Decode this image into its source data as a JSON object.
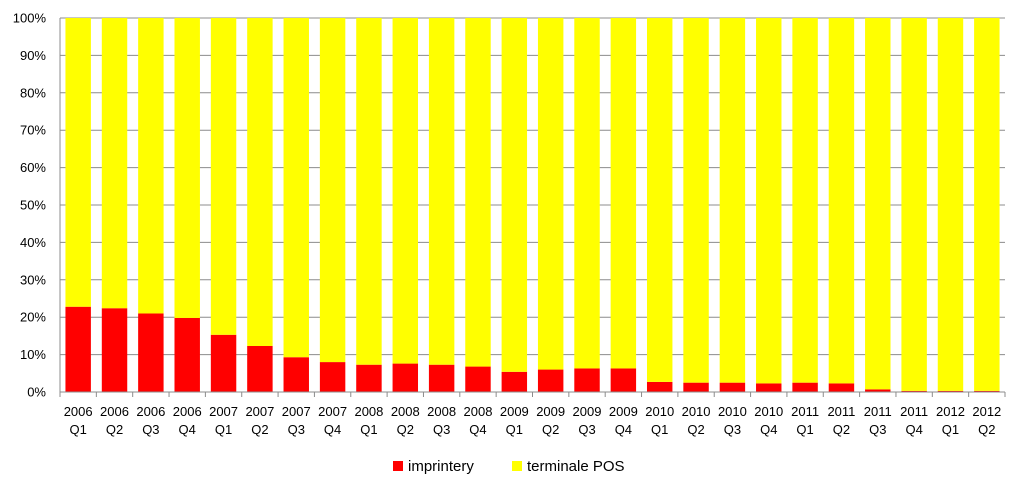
{
  "chart_data": {
    "type": "bar",
    "stacked": true,
    "categories": [
      [
        "2006",
        "Q1"
      ],
      [
        "2006",
        "Q2"
      ],
      [
        "2006",
        "Q3"
      ],
      [
        "2006",
        "Q4"
      ],
      [
        "2007",
        "Q1"
      ],
      [
        "2007",
        "Q2"
      ],
      [
        "2007",
        "Q3"
      ],
      [
        "2007",
        "Q4"
      ],
      [
        "2008",
        "Q1"
      ],
      [
        "2008",
        "Q2"
      ],
      [
        "2008",
        "Q3"
      ],
      [
        "2008",
        "Q4"
      ],
      [
        "2009",
        "Q1"
      ],
      [
        "2009",
        "Q2"
      ],
      [
        "2009",
        "Q3"
      ],
      [
        "2009",
        "Q4"
      ],
      [
        "2010",
        "Q1"
      ],
      [
        "2010",
        "Q2"
      ],
      [
        "2010",
        "Q3"
      ],
      [
        "2010",
        "Q4"
      ],
      [
        "2011",
        "Q1"
      ],
      [
        "2011",
        "Q2"
      ],
      [
        "2011",
        "Q3"
      ],
      [
        "2011",
        "Q4"
      ],
      [
        "2012",
        "Q1"
      ],
      [
        "2012",
        "Q2"
      ]
    ],
    "series": [
      {
        "name": "imprintery",
        "color": "#ff0000",
        "values": [
          22.8,
          22.4,
          21.0,
          19.8,
          15.3,
          12.3,
          9.3,
          8.0,
          7.3,
          7.6,
          7.3,
          6.8,
          5.4,
          6.0,
          6.3,
          6.3,
          2.7,
          2.5,
          2.5,
          2.3,
          2.5,
          2.3,
          0.7,
          0.3,
          0.3,
          0.3
        ]
      },
      {
        "name": "terminale POS",
        "color": "#ffff00",
        "values": [
          77.2,
          77.6,
          79.0,
          80.2,
          84.7,
          87.7,
          90.7,
          92.0,
          92.7,
          92.4,
          92.7,
          93.2,
          94.6,
          94.0,
          93.7,
          93.7,
          97.3,
          97.5,
          97.5,
          97.7,
          97.5,
          97.7,
          99.3,
          99.7,
          99.7,
          99.7
        ]
      }
    ],
    "ylim": [
      0,
      100
    ],
    "yticks": [
      "0%",
      "10%",
      "20%",
      "30%",
      "40%",
      "50%",
      "60%",
      "70%",
      "80%",
      "90%",
      "100%"
    ],
    "grid": true,
    "legend": "bottom"
  }
}
